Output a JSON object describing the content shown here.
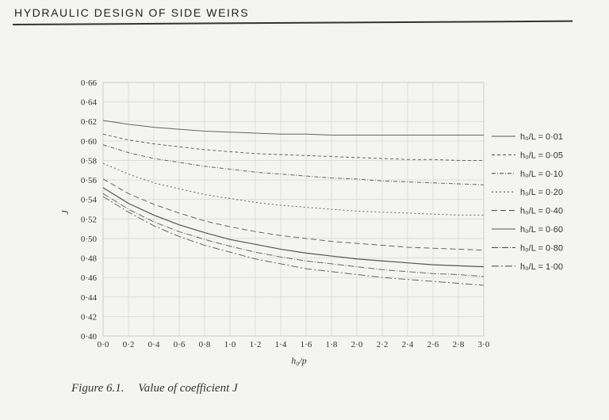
{
  "page": {
    "running_head": "HYDRAULIC DESIGN OF SIDE WEIRS",
    "caption_label": "Figure 6.1.",
    "caption_text": "Value of coefficient J"
  },
  "chart_data": {
    "type": "line",
    "xlabel": "h₀/p",
    "ylabel": "J",
    "xlim": [
      0,
      3.0
    ],
    "ylim": [
      0.4,
      0.66
    ],
    "grid": true,
    "legend_position": "right",
    "x": [
      0,
      0.2,
      0.4,
      0.6,
      0.8,
      1.0,
      1.2,
      1.4,
      1.6,
      1.8,
      2.0,
      2.2,
      2.4,
      2.6,
      2.8,
      3.0
    ],
    "x_tick_labels": [
      "0·0",
      "0·2",
      "0·4",
      "0·6",
      "0·8",
      "1·0",
      "1·2",
      "1·4",
      "1·6",
      "1·8",
      "2·0",
      "2·2",
      "2·4",
      "2·6",
      "2·8",
      "3·0"
    ],
    "y_ticks": [
      0.4,
      0.42,
      0.44,
      0.46,
      0.48,
      0.5,
      0.52,
      0.54,
      0.56,
      0.58,
      0.6,
      0.62,
      0.64,
      0.66
    ],
    "y_tick_labels": [
      "0·40",
      "0·42",
      "0·44",
      "0·46",
      "0·48",
      "0·50",
      "0·52",
      "0·54",
      "0·56",
      "0·58",
      "0·60",
      "0·62",
      "0·64",
      "0·66"
    ],
    "series": [
      {
        "name": "h₀/L = 0·01",
        "dash": "solid",
        "values": [
          0.621,
          0.617,
          0.614,
          0.612,
          0.61,
          0.609,
          0.608,
          0.607,
          0.607,
          0.606,
          0.606,
          0.606,
          0.606,
          0.606,
          0.606,
          0.606
        ]
      },
      {
        "name": "h₀/L = 0·05",
        "dash": "4 3",
        "values": [
          0.607,
          0.601,
          0.597,
          0.594,
          0.591,
          0.589,
          0.587,
          0.586,
          0.585,
          0.584,
          0.583,
          0.582,
          0.581,
          0.581,
          0.58,
          0.58
        ]
      },
      {
        "name": "h₀/L = 0·10",
        "dash": "5 2 1 2",
        "values": [
          0.596,
          0.588,
          0.582,
          0.578,
          0.574,
          0.571,
          0.568,
          0.566,
          0.564,
          0.562,
          0.561,
          0.559,
          0.558,
          0.557,
          0.556,
          0.555
        ]
      },
      {
        "name": "h₀/L = 0·20",
        "dash": "2 3",
        "values": [
          0.577,
          0.566,
          0.557,
          0.551,
          0.545,
          0.541,
          0.537,
          0.534,
          0.532,
          0.53,
          0.528,
          0.527,
          0.526,
          0.525,
          0.524,
          0.524
        ]
      },
      {
        "name": "h₀/L = 0·40",
        "dash": "7 4",
        "values": [
          0.561,
          0.546,
          0.535,
          0.526,
          0.518,
          0.512,
          0.507,
          0.503,
          0.5,
          0.497,
          0.495,
          0.493,
          0.491,
          0.49,
          0.489,
          0.488
        ]
      },
      {
        "name": "h₀/L = 0·60",
        "dash": "solid",
        "values": [
          0.552,
          0.536,
          0.524,
          0.514,
          0.506,
          0.499,
          0.494,
          0.489,
          0.485,
          0.482,
          0.479,
          0.477,
          0.475,
          0.473,
          0.472,
          0.471
        ]
      },
      {
        "name": "h₀/L = 0·80",
        "dash": "8 2 1 2",
        "values": [
          0.546,
          0.53,
          0.517,
          0.507,
          0.499,
          0.492,
          0.486,
          0.481,
          0.477,
          0.474,
          0.471,
          0.468,
          0.466,
          0.464,
          0.463,
          0.461
        ]
      },
      {
        "name": "h₀/L = 1·00",
        "dash": "9 3 2 3",
        "values": [
          0.543,
          0.527,
          0.513,
          0.502,
          0.493,
          0.486,
          0.479,
          0.474,
          0.469,
          0.466,
          0.463,
          0.46,
          0.458,
          0.456,
          0.454,
          0.452
        ]
      }
    ]
  }
}
